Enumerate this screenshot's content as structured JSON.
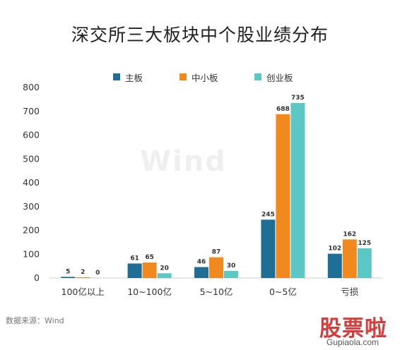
{
  "title": "深交所三大板块中个股业绩分布",
  "source_text": "数据来源：Wind",
  "watermark_text": "Wind",
  "brand": {
    "name": "股票啦",
    "url": "Gupiaola.com"
  },
  "colors": {
    "主板": "#1f6e95",
    "中小板": "#f08a1e",
    "创业板": "#5cc8c6",
    "axis": "#cccccc"
  },
  "chart_data": {
    "type": "bar",
    "title": "深交所三大板块中个股业绩分布",
    "xlabel": "",
    "ylabel": "",
    "categories": [
      "100亿以上",
      "10~100亿",
      "5~10亿",
      "0~5亿",
      "亏损"
    ],
    "series": [
      {
        "name": "主板",
        "values": [
          5,
          61,
          46,
          245,
          102
        ]
      },
      {
        "name": "中小板",
        "values": [
          2,
          65,
          87,
          688,
          162
        ]
      },
      {
        "name": "创业板",
        "values": [
          0,
          20,
          30,
          735,
          125
        ]
      }
    ],
    "ylim": [
      0,
      800
    ],
    "yticks": [
      0,
      100,
      200,
      300,
      400,
      500,
      600,
      700,
      800
    ],
    "grid": false,
    "legend_position": "top"
  }
}
